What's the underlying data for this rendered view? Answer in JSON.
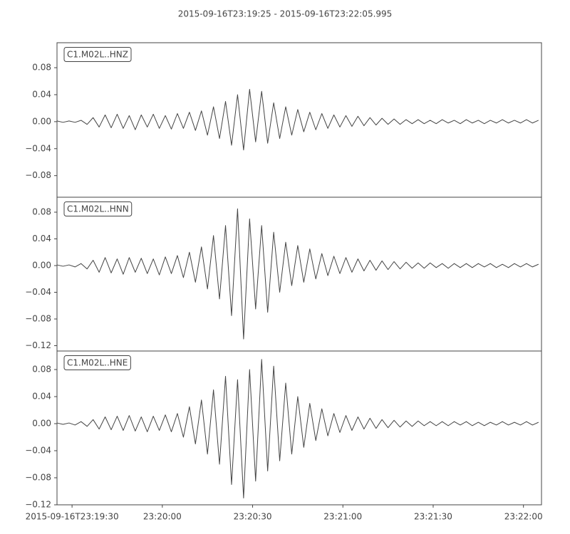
{
  "chart_data": [
    {
      "type": "line",
      "title": "2015-09-16T23:19:25  -  2015-09-16T23:22:05.995",
      "label": "C1.M02L..HNZ",
      "color": "#444444",
      "xlim": [
        "2015-09-16T23:19:25",
        "2015-09-16T23:22:05.995"
      ],
      "ylim": [
        -0.112,
        0.117
      ],
      "yticks": [
        {
          "value": -0.08,
          "label": "−0.08"
        },
        {
          "value": -0.04,
          "label": "−0.04"
        },
        {
          "value": 0,
          "label": "0.00"
        },
        0.04,
        0.08
      ],
      "x": [
        "23:19:25",
        "23:19:27",
        "23:19:29",
        "23:19:31",
        "23:19:33",
        "23:19:35",
        "23:19:37",
        "23:19:39",
        "23:19:41",
        "23:19:43",
        "23:19:45",
        "23:19:47",
        "23:19:49",
        "23:19:51",
        "23:19:53",
        "23:19:55",
        "23:19:57",
        "23:19:59",
        "23:20:01",
        "23:20:03",
        "23:20:05",
        "23:20:07",
        "23:20:09",
        "23:20:11",
        "23:20:13",
        "23:20:15",
        "23:20:17",
        "23:20:19",
        "23:20:21",
        "23:20:23",
        "23:20:25",
        "23:20:27",
        "23:20:29",
        "23:20:31",
        "23:20:33",
        "23:20:35",
        "23:20:37",
        "23:20:39",
        "23:20:41",
        "23:20:43",
        "23:20:45",
        "23:20:47",
        "23:20:49",
        "23:20:51",
        "23:20:53",
        "23:20:55",
        "23:20:57",
        "23:20:59",
        "23:21:01",
        "23:21:03",
        "23:21:05",
        "23:21:07",
        "23:21:09",
        "23:21:11",
        "23:21:13",
        "23:21:15",
        "23:21:17",
        "23:21:19",
        "23:21:21",
        "23:21:23",
        "23:21:25",
        "23:21:27",
        "23:21:29",
        "23:21:31",
        "23:21:33",
        "23:21:35",
        "23:21:37",
        "23:21:39",
        "23:21:41",
        "23:21:43",
        "23:21:45",
        "23:21:47",
        "23:21:49",
        "23:21:51",
        "23:21:53",
        "23:21:55",
        "23:21:57",
        "23:21:59",
        "23:22:01",
        "23:22:03",
        "23:22:05"
      ],
      "values": [
        0.001,
        -0.001,
        0.001,
        -0.001,
        0.002,
        -0.004,
        0.006,
        -0.008,
        0.01,
        -0.009,
        0.011,
        -0.01,
        0.009,
        -0.012,
        0.01,
        -0.008,
        0.011,
        -0.01,
        0.009,
        -0.011,
        0.012,
        -0.01,
        0.014,
        -0.013,
        0.016,
        -0.02,
        0.022,
        -0.025,
        0.03,
        -0.035,
        0.04,
        -0.042,
        0.048,
        -0.03,
        0.045,
        -0.032,
        0.028,
        -0.025,
        0.022,
        -0.02,
        0.018,
        -0.015,
        0.014,
        -0.012,
        0.012,
        -0.01,
        0.01,
        -0.008,
        0.009,
        -0.007,
        0.008,
        -0.006,
        0.006,
        -0.005,
        0.005,
        -0.004,
        0.004,
        -0.004,
        0.003,
        -0.003,
        0.003,
        -0.003,
        0.002,
        -0.003,
        0.003,
        -0.002,
        0.002,
        -0.003,
        0.003,
        -0.002,
        0.002,
        -0.003,
        0.002,
        -0.002,
        0.003,
        -0.002,
        0.002,
        -0.002,
        0.003,
        -0.002,
        0.002
      ]
    },
    {
      "type": "line",
      "label": "C1.M02L..HNN",
      "color": "#444444",
      "xlim": [
        "2015-09-16T23:19:25",
        "2015-09-16T23:22:05.995"
      ],
      "ylim": [
        -0.128,
        0.1024
      ],
      "yticks": [
        {
          "value": -0.12,
          "label": "−0.12"
        },
        {
          "value": -0.08,
          "label": "−0.08"
        },
        {
          "value": -0.04,
          "label": "−0.04"
        },
        {
          "value": 0,
          "label": "0.00"
        },
        0.04,
        0.08
      ],
      "x": [
        "23:19:25",
        "23:19:27",
        "23:19:29",
        "23:19:31",
        "23:19:33",
        "23:19:35",
        "23:19:37",
        "23:19:39",
        "23:19:41",
        "23:19:43",
        "23:19:45",
        "23:19:47",
        "23:19:49",
        "23:19:51",
        "23:19:53",
        "23:19:55",
        "23:19:57",
        "23:19:59",
        "23:20:01",
        "23:20:03",
        "23:20:05",
        "23:20:07",
        "23:20:09",
        "23:20:11",
        "23:20:13",
        "23:20:15",
        "23:20:17",
        "23:20:19",
        "23:20:21",
        "23:20:23",
        "23:20:25",
        "23:20:27",
        "23:20:29",
        "23:20:31",
        "23:20:33",
        "23:20:35",
        "23:20:37",
        "23:20:39",
        "23:20:41",
        "23:20:43",
        "23:20:45",
        "23:20:47",
        "23:20:49",
        "23:20:51",
        "23:20:53",
        "23:20:55",
        "23:20:57",
        "23:20:59",
        "23:21:01",
        "23:21:03",
        "23:21:05",
        "23:21:07",
        "23:21:09",
        "23:21:11",
        "23:21:13",
        "23:21:15",
        "23:21:17",
        "23:21:19",
        "23:21:21",
        "23:21:23",
        "23:21:25",
        "23:21:27",
        "23:21:29",
        "23:21:31",
        "23:21:33",
        "23:21:35",
        "23:21:37",
        "23:21:39",
        "23:21:41",
        "23:21:43",
        "23:21:45",
        "23:21:47",
        "23:21:49",
        "23:21:51",
        "23:21:53",
        "23:21:55",
        "23:21:57",
        "23:21:59",
        "23:22:01",
        "23:22:03",
        "23:22:05"
      ],
      "values": [
        0.001,
        -0.001,
        0.001,
        -0.002,
        0.003,
        -0.005,
        0.008,
        -0.01,
        0.012,
        -0.011,
        0.01,
        -0.013,
        0.012,
        -0.01,
        0.011,
        -0.012,
        0.01,
        -0.014,
        0.013,
        -0.012,
        0.015,
        -0.018,
        0.02,
        -0.025,
        0.028,
        -0.035,
        0.045,
        -0.05,
        0.06,
        -0.075,
        0.085,
        -0.11,
        0.07,
        -0.065,
        0.06,
        -0.07,
        0.05,
        -0.04,
        0.035,
        -0.03,
        0.03,
        -0.025,
        0.025,
        -0.02,
        0.018,
        -0.015,
        0.014,
        -0.012,
        0.012,
        -0.01,
        0.01,
        -0.008,
        0.008,
        -0.007,
        0.007,
        -0.006,
        0.006,
        -0.005,
        0.005,
        -0.004,
        0.004,
        -0.004,
        0.004,
        -0.003,
        0.003,
        -0.004,
        0.003,
        -0.003,
        0.003,
        -0.003,
        0.003,
        -0.002,
        0.003,
        -0.003,
        0.002,
        -0.003,
        0.003,
        -0.002,
        0.003,
        -0.002,
        0.002
      ]
    },
    {
      "type": "line",
      "label": "C1.M02L..HNE",
      "color": "#444444",
      "xlim": [
        "2015-09-16T23:19:25",
        "2015-09-16T23:22:05.995"
      ],
      "xticks": [
        "2015-09-16T23:19:30",
        "23:20:00",
        "23:20:30",
        "23:21:00",
        "23:21:30",
        "23:22:00"
      ],
      "ylim": [
        -0.12,
        0.1074
      ],
      "yticks": [
        {
          "value": -0.12,
          "label": "−0.12"
        },
        {
          "value": -0.08,
          "label": "−0.08"
        },
        {
          "value": -0.04,
          "label": "−0.04"
        },
        {
          "value": 0,
          "label": "0.00"
        },
        0.04,
        0.08
      ],
      "x": [
        "23:19:25",
        "23:19:27",
        "23:19:29",
        "23:19:31",
        "23:19:33",
        "23:19:35",
        "23:19:37",
        "23:19:39",
        "23:19:41",
        "23:19:43",
        "23:19:45",
        "23:19:47",
        "23:19:49",
        "23:19:51",
        "23:19:53",
        "23:19:55",
        "23:19:57",
        "23:19:59",
        "23:20:01",
        "23:20:03",
        "23:20:05",
        "23:20:07",
        "23:20:09",
        "23:20:11",
        "23:20:13",
        "23:20:15",
        "23:20:17",
        "23:20:19",
        "23:20:21",
        "23:20:23",
        "23:20:25",
        "23:20:27",
        "23:20:29",
        "23:20:31",
        "23:20:33",
        "23:20:35",
        "23:20:37",
        "23:20:39",
        "23:20:41",
        "23:20:43",
        "23:20:45",
        "23:20:47",
        "23:20:49",
        "23:20:51",
        "23:20:53",
        "23:20:55",
        "23:20:57",
        "23:20:59",
        "23:21:01",
        "23:21:03",
        "23:21:05",
        "23:21:07",
        "23:21:09",
        "23:21:11",
        "23:21:13",
        "23:21:15",
        "23:21:17",
        "23:21:19",
        "23:21:21",
        "23:21:23",
        "23:21:25",
        "23:21:27",
        "23:21:29",
        "23:21:31",
        "23:21:33",
        "23:21:35",
        "23:21:37",
        "23:21:39",
        "23:21:41",
        "23:21:43",
        "23:21:45",
        "23:21:47",
        "23:21:49",
        "23:21:51",
        "23:21:53",
        "23:21:55",
        "23:21:57",
        "23:21:59",
        "23:22:01",
        "23:22:03",
        "23:22:05"
      ],
      "values": [
        0.001,
        -0.001,
        0.001,
        -0.002,
        0.003,
        -0.004,
        0.006,
        -0.008,
        0.01,
        -0.009,
        0.011,
        -0.01,
        0.012,
        -0.011,
        0.01,
        -0.012,
        0.011,
        -0.01,
        0.013,
        -0.012,
        0.015,
        -0.02,
        0.025,
        -0.03,
        0.035,
        -0.045,
        0.05,
        -0.06,
        0.07,
        -0.09,
        0.065,
        -0.11,
        0.08,
        -0.085,
        0.095,
        -0.07,
        0.085,
        -0.055,
        0.06,
        -0.045,
        0.04,
        -0.035,
        0.03,
        -0.025,
        0.022,
        -0.018,
        0.015,
        -0.013,
        0.012,
        -0.01,
        0.01,
        -0.008,
        0.008,
        -0.007,
        0.006,
        -0.006,
        0.005,
        -0.005,
        0.004,
        -0.004,
        0.004,
        -0.003,
        0.003,
        -0.003,
        0.003,
        -0.003,
        0.003,
        -0.002,
        0.003,
        -0.003,
        0.002,
        -0.003,
        0.002,
        -0.002,
        0.003,
        -0.002,
        0.002,
        -0.002,
        0.003,
        -0.002,
        0.002
      ]
    }
  ]
}
